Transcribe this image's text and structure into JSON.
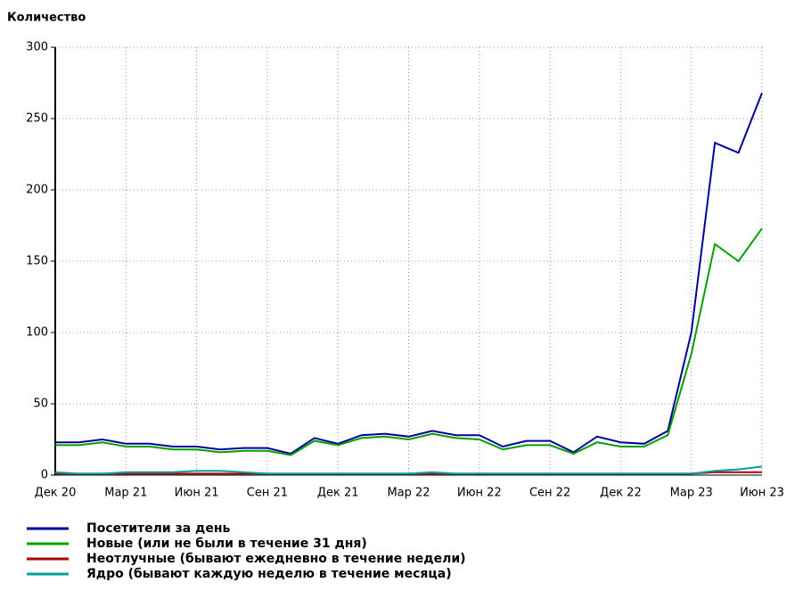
{
  "chart_data": {
    "type": "line",
    "y_axis_label": "Количество",
    "categories": [
      "Дек 20",
      null,
      null,
      "Мар 21",
      null,
      null,
      "Июн 21",
      null,
      null,
      "Сен 21",
      null,
      null,
      "Дек 21",
      null,
      null,
      "Мар 22",
      null,
      null,
      "Июн 22",
      null,
      null,
      "Сен 22",
      null,
      null,
      "Дек 22",
      null,
      null,
      "Мар 23",
      null,
      null,
      "Июн 23"
    ],
    "series": [
      {
        "name": "Посетители за день",
        "color": "#00009c",
        "values": [
          23,
          23,
          25,
          22,
          22,
          20,
          20,
          18,
          19,
          19,
          15,
          26,
          22,
          28,
          29,
          27,
          31,
          28,
          28,
          20,
          24,
          24,
          16,
          27,
          23,
          22,
          31,
          100,
          233,
          226,
          268
        ]
      },
      {
        "name": "Новые (или не были в течение 31 дня)",
        "color": "#00a000",
        "values": [
          21,
          21,
          23,
          20,
          20,
          18,
          18,
          16,
          17,
          17,
          14,
          24,
          21,
          26,
          27,
          25,
          29,
          26,
          25,
          18,
          21,
          21,
          15,
          23,
          20,
          20,
          28,
          85,
          162,
          150,
          173
        ]
      },
      {
        "name": "Неотлучные (бывают ежедневно в течение недели)",
        "color": "#b00000",
        "values": [
          1,
          1,
          1,
          1,
          1,
          1,
          1,
          1,
          1,
          1,
          1,
          1,
          1,
          1,
          1,
          1,
          1,
          1,
          1,
          1,
          1,
          1,
          1,
          1,
          1,
          1,
          1,
          1,
          2,
          2,
          2
        ]
      },
      {
        "name": "Ядро (бывают каждую неделю в течение месяца)",
        "color": "#00a0a0",
        "values": [
          2,
          1,
          1,
          2,
          2,
          2,
          3,
          3,
          2,
          1,
          1,
          1,
          1,
          1,
          1,
          1,
          2,
          1,
          1,
          1,
          1,
          1,
          1,
          1,
          1,
          1,
          1,
          1,
          3,
          4,
          6
        ]
      }
    ],
    "ylim": [
      0,
      300
    ],
    "yticks": [
      0,
      50,
      100,
      150,
      200,
      250,
      300
    ],
    "grid": true
  }
}
